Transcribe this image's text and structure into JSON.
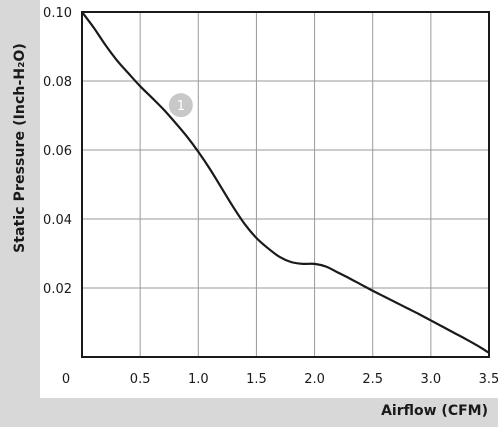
{
  "chart_data": {
    "type": "line",
    "title": "",
    "xlabel": "Airflow (CFM)",
    "ylabel": "Static Pressure (Inch-H₂O)",
    "xlim": [
      0,
      3.5
    ],
    "ylim": [
      0,
      0.1
    ],
    "xticks": [
      0,
      0.5,
      1.0,
      1.5,
      2.0,
      2.5,
      3.0,
      3.5
    ],
    "xtick_labels": [
      "0",
      "0.5",
      "1.0",
      "1.5",
      "2.0",
      "2.5",
      "3.0",
      "3.5"
    ],
    "yticks": [
      0.02,
      0.04,
      0.06,
      0.08,
      0.1
    ],
    "ytick_labels": [
      "0.02",
      "0.04",
      "0.06",
      "0.08",
      "0.10"
    ],
    "grid": true,
    "series": [
      {
        "label": "1",
        "color": "#1a1a1a",
        "x": [
          0,
          0.1,
          0.2,
          0.3,
          0.4,
          0.5,
          0.6,
          0.7,
          0.8,
          0.9,
          1.0,
          1.1,
          1.2,
          1.3,
          1.4,
          1.5,
          1.6,
          1.7,
          1.8,
          1.9,
          2.0,
          2.1,
          2.2,
          2.3,
          2.4,
          2.5,
          2.6,
          2.7,
          2.8,
          2.9,
          3.0,
          3.1,
          3.2,
          3.3,
          3.4,
          3.5
        ],
        "y": [
          0.1,
          0.0955,
          0.0905,
          0.086,
          0.0822,
          0.0785,
          0.0752,
          0.0718,
          0.068,
          0.064,
          0.0595,
          0.0545,
          0.049,
          0.0435,
          0.0385,
          0.0345,
          0.0315,
          0.029,
          0.0275,
          0.027,
          0.027,
          0.0262,
          0.0245,
          0.0228,
          0.021,
          0.0192,
          0.0175,
          0.0158,
          0.0141,
          0.0124,
          0.0106,
          0.0088,
          0.007,
          0.0052,
          0.0033,
          0.0012
        ]
      }
    ],
    "annotations": [
      {
        "text": "1",
        "x": 0.85,
        "y": 0.073,
        "color": "#c8c8c8"
      }
    ],
    "colors": {
      "grid": "#9a9a9a",
      "axis": "#1a1a1a",
      "frame": "#d8d8d8"
    }
  }
}
